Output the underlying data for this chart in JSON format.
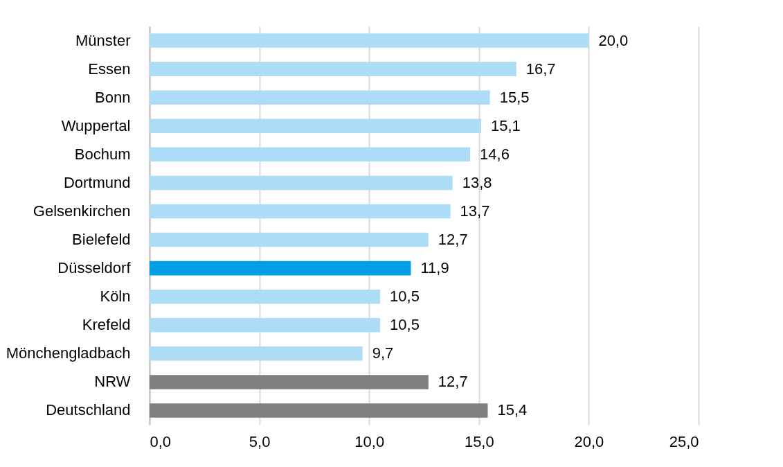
{
  "chart_data": {
    "type": "bar",
    "orientation": "horizontal",
    "categories": [
      "Münster",
      "Essen",
      "Bonn",
      "Wuppertal",
      "Bochum",
      "Dortmund",
      "Gelsenkirchen",
      "Bielefeld",
      "Düsseldorf",
      "Köln",
      "Krefeld",
      "Mönchengladbach",
      "NRW",
      "Deutschland"
    ],
    "values": [
      20.0,
      16.7,
      15.5,
      15.1,
      14.6,
      13.8,
      13.7,
      12.7,
      11.9,
      10.5,
      10.5,
      9.7,
      12.7,
      15.4
    ],
    "value_labels": [
      "20,0",
      "16,7",
      "15,5",
      "15,1",
      "14,6",
      "13,8",
      "13,7",
      "12,7",
      "11,9",
      "10,5",
      "10,5",
      "9,7",
      "12,7",
      "15,4"
    ],
    "colors": [
      "#addcf6",
      "#addcf6",
      "#addcf6",
      "#addcf6",
      "#addcf6",
      "#addcf6",
      "#addcf6",
      "#addcf6",
      "#009fe3",
      "#addcf6",
      "#addcf6",
      "#addcf6",
      "#7f7f7f",
      "#7f7f7f"
    ],
    "xlim": [
      0,
      25
    ],
    "xticks": [
      {
        "value": 0,
        "label": "0,0"
      },
      {
        "value": 5,
        "label": "5,0"
      },
      {
        "value": 10,
        "label": "10,0"
      },
      {
        "value": 15,
        "label": "15,0"
      },
      {
        "value": 20,
        "label": "20,0"
      },
      {
        "value": 25,
        "label": "25,0"
      }
    ],
    "grid": "x"
  }
}
